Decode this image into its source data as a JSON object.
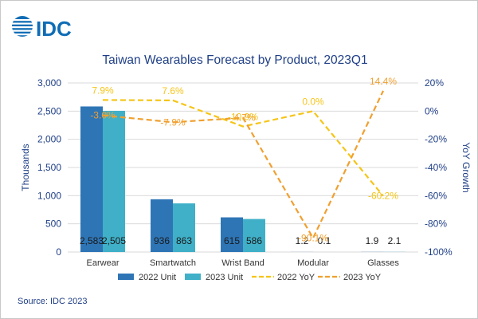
{
  "brand": {
    "logo_text": "IDC",
    "logo_color": "#0f6db5"
  },
  "source": "Source: IDC 2023",
  "chart_data": {
    "type": "bar",
    "title": "Taiwan Wearables Forecast by Product, 2023Q1",
    "ylabel": "Thousands",
    "y2label": "YoY Growth",
    "categories": [
      "Earwear",
      "Smartwatch",
      "Wrist Band",
      "Modular",
      "Glasses"
    ],
    "ylim": [
      0,
      3000
    ],
    "yticks": [
      "0",
      "500",
      "1,000",
      "1,500",
      "2,000",
      "2,500",
      "3,000"
    ],
    "y2lim": [
      -100,
      20
    ],
    "y2ticks": [
      "-100%",
      "-80%",
      "-60%",
      "-40%",
      "-20%",
      "0%",
      "20%"
    ],
    "legend_position": "bottom",
    "series": [
      {
        "name": "2022 Unit",
        "kind": "bar",
        "axis": "left",
        "color": "#2e75b6",
        "values": [
          2583,
          936,
          615,
          1.2,
          1.9
        ],
        "labels": [
          "2,583",
          "936",
          "615",
          "1.2",
          "1.9"
        ]
      },
      {
        "name": "2023 Unit",
        "kind": "bar",
        "axis": "left",
        "color": "#3fb0c8",
        "values": [
          2505,
          863,
          586,
          0.1,
          2.1
        ],
        "labels": [
          "2,505",
          "863",
          "586",
          "0.1",
          "2.1"
        ]
      },
      {
        "name": "2022 YoY",
        "kind": "line",
        "axis": "right",
        "color": "#f5c518",
        "dash": "dashed",
        "values": [
          7.9,
          7.6,
          -10.9,
          0.0,
          -60.2
        ],
        "labels": [
          "7.9%",
          "7.6%",
          "-10.9%",
          "0.0%",
          "-60.2%"
        ]
      },
      {
        "name": "2023 YoY",
        "kind": "line",
        "axis": "right",
        "color": "#f0a030",
        "dash": "dashed",
        "values": [
          -3.0,
          -7.9,
          -4.7,
          -90.1,
          14.4
        ],
        "labels": [
          "-3.0%",
          "-7.9%",
          "-4.7%",
          "-90.1%",
          "14.4%"
        ]
      }
    ]
  }
}
